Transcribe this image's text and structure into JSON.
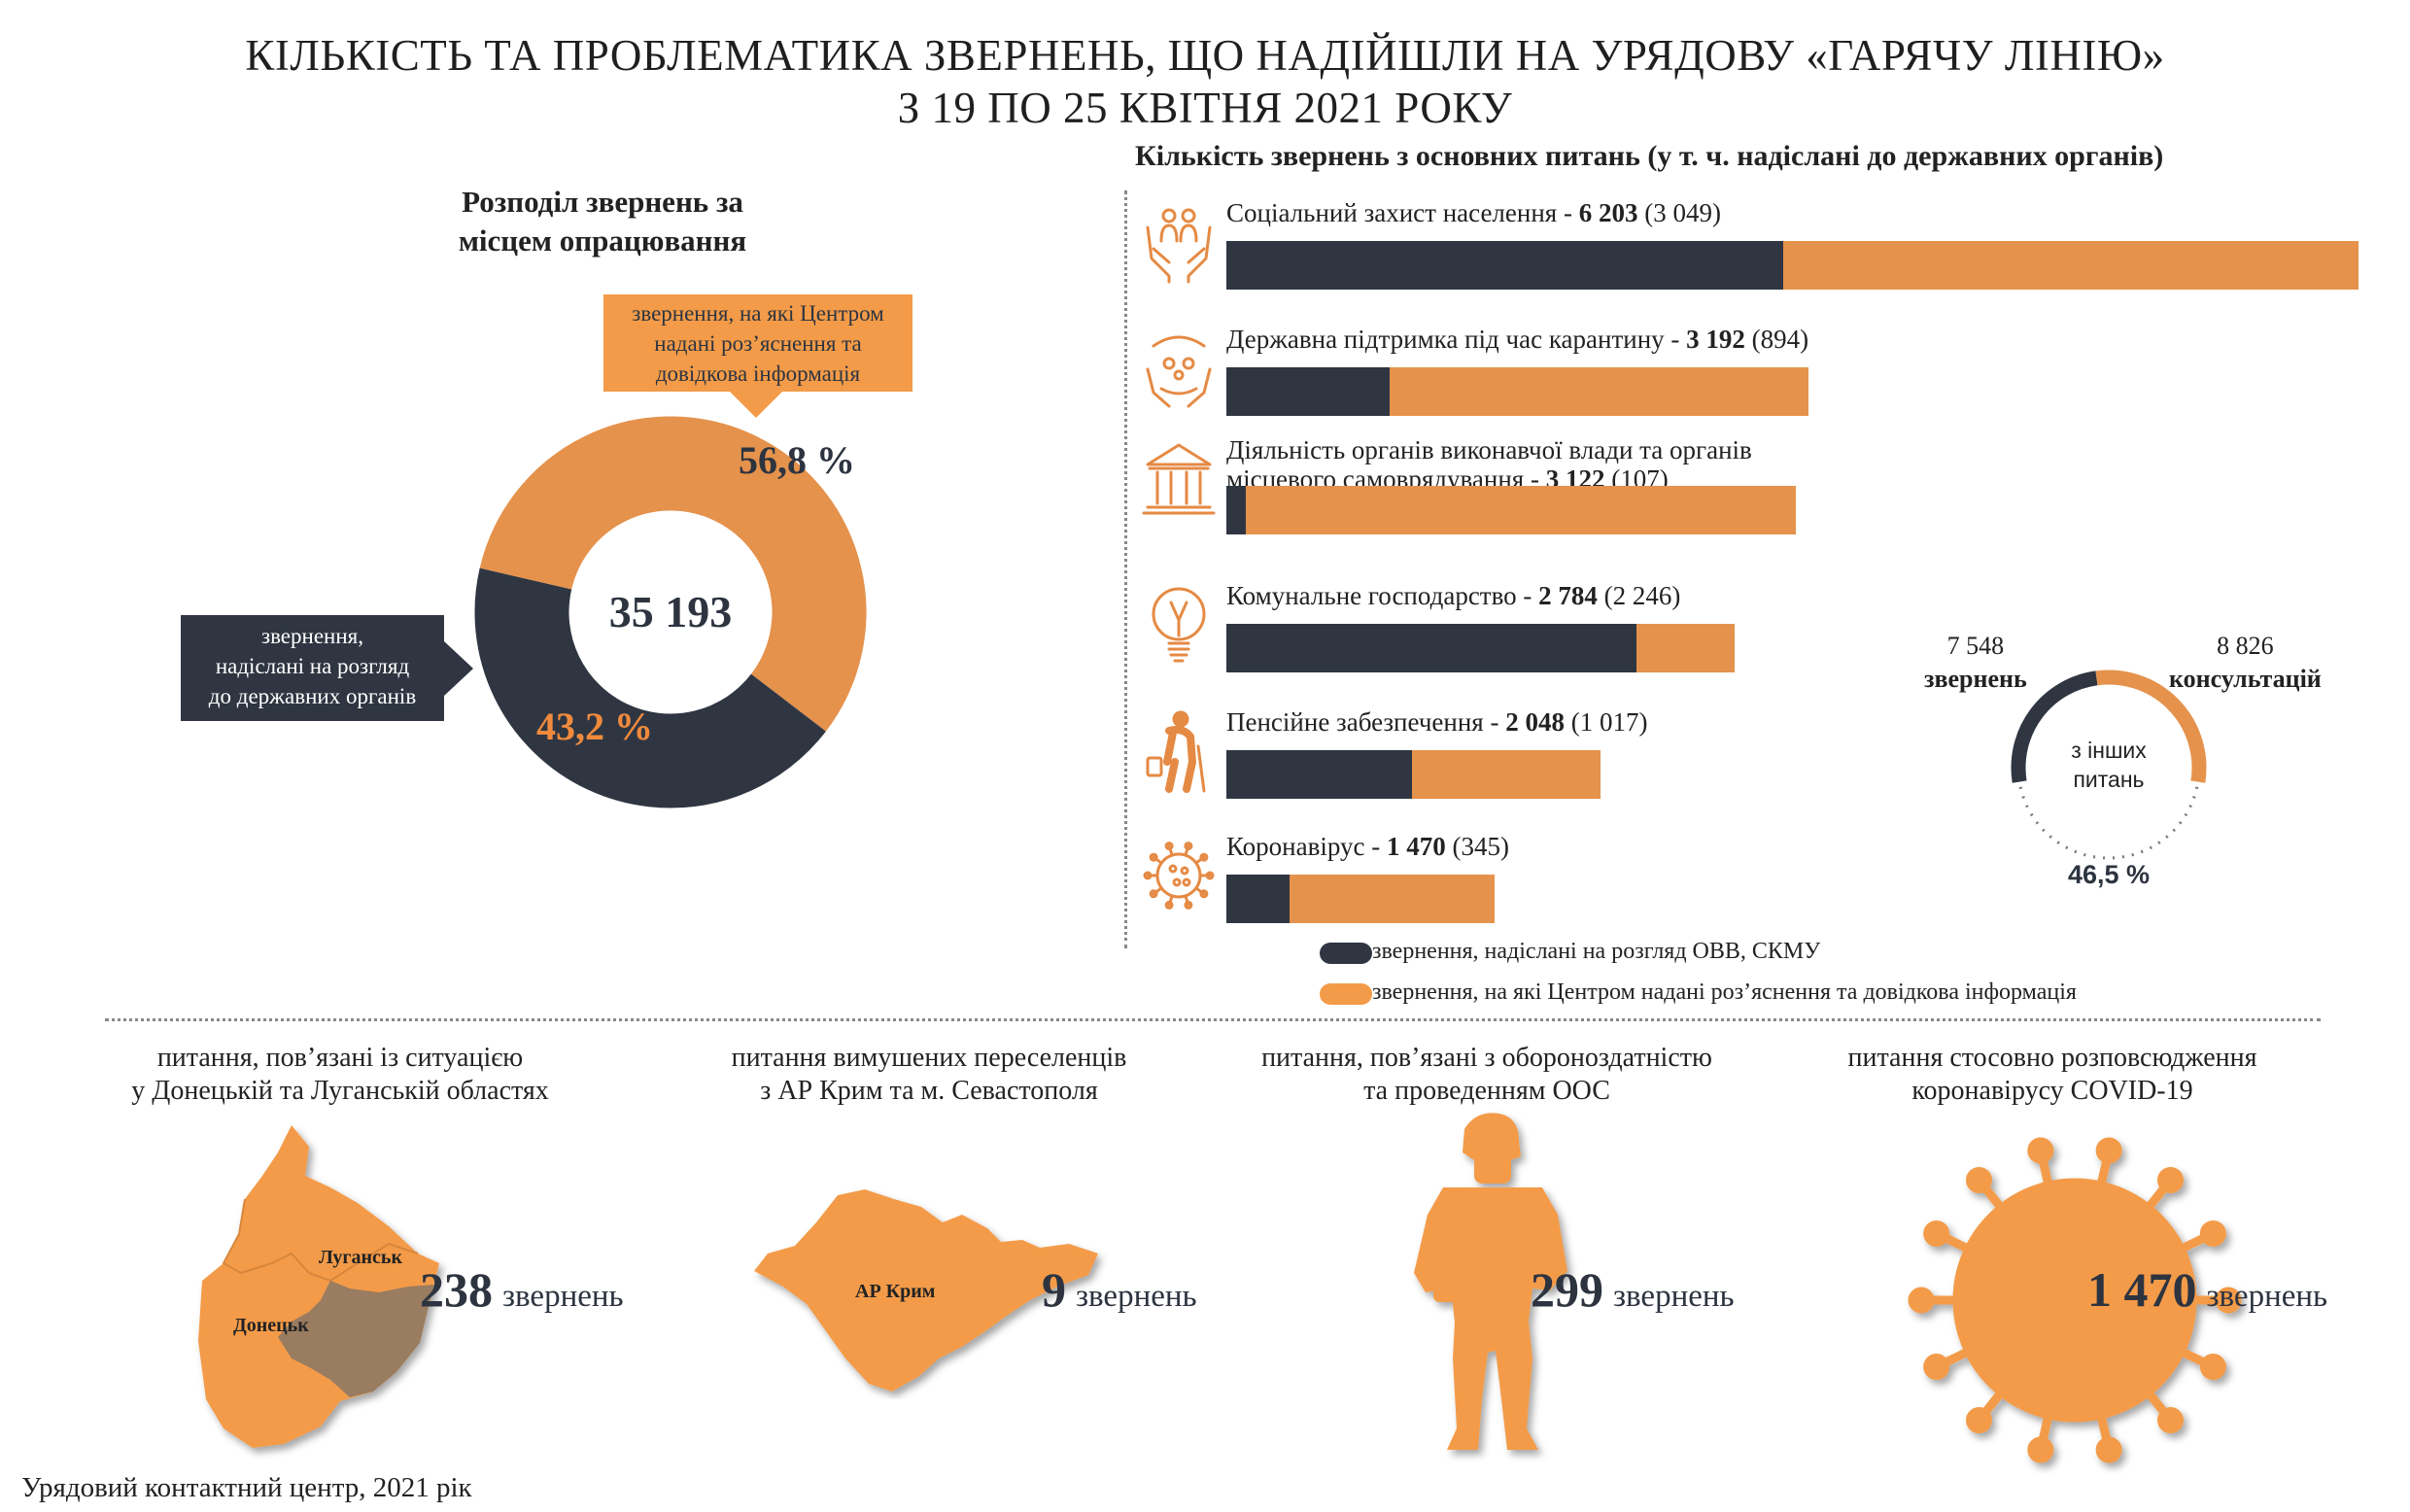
{
  "title": {
    "line1": "КІЛЬКІСТЬ ТА ПРОБЛЕМАТИКА ЗВЕРНЕНЬ, ЩО НАДІЙШЛИ НА УРЯДОВУ «ГАРЯЧУ ЛІНІЮ»",
    "line2": "З 19 ПО 25 КВІТНЯ 2021 РОКУ"
  },
  "donut": {
    "heading_line1": "Розподіл звернень за",
    "heading_line2": "місцем опрацювання",
    "total": "35 193",
    "orange_label_line1": "звернення, на які Центром",
    "orange_label_line2": "надані роз’яснення та",
    "orange_label_line3": "довідкова інформація",
    "orange_pct": "56,8 %",
    "dark_label_line1": "звернення,",
    "dark_label_line2": "надіслані на розгляд",
    "dark_label_line3": "до державних органів",
    "dark_pct": "43,2 %"
  },
  "bars": {
    "heading": "Кількість звернень з основних питань (у т. ч. надіслані до державних органів)",
    "legend_dark": "звернення, надіслані на розгляд ОВВ, СКМУ",
    "legend_orange": "звернення, на які Центром надані роз’яснення та довідкова інформація",
    "items": [
      {
        "label": "Соціальний захист населення - ",
        "label2": "",
        "total_text": "6 203",
        "sent_text": " (3 049)",
        "icon": "people-in-hands-icon"
      },
      {
        "label": "Державна підтримка під час карантину - ",
        "label2": "",
        "total_text": "3 192",
        "sent_text": " (894)",
        "icon": "hands-family-icon"
      },
      {
        "label": "Діяльність органів виконавчої влади та органів",
        "label2": "місцевого самоврядування - ",
        "total_text": "3 122",
        "sent_text": " (107)",
        "icon": "government-building-icon"
      },
      {
        "label": "Комунальне господарство - ",
        "label2": "",
        "total_text": "2 784",
        "sent_text": " (2 246)",
        "icon": "light-bulb-icon"
      },
      {
        "label": "Пенсійне забезпечення - ",
        "label2": "",
        "total_text": "2 048",
        "sent_text": " (1 017)",
        "icon": "elderly-person-icon"
      },
      {
        "label": "Коронавірус - ",
        "label2": "",
        "total_text": "1 470",
        "sent_text": " (345)",
        "icon": "virus-icon"
      }
    ]
  },
  "other": {
    "left_num": "7 548",
    "left_label": "звернень",
    "right_num": "8 826",
    "right_label": "консультацій",
    "center_line1": "з інших",
    "center_line2": "питань",
    "pct": "46,5 %"
  },
  "categories": [
    {
      "caption1": "питання, пов’язані із ситуацією",
      "caption2": "у Донецькій та Луганській областях",
      "num": "238",
      "unit": "звернень",
      "map_label1": "Луганськ",
      "map_label2": "Донецьк",
      "icon": "donbas-map-icon"
    },
    {
      "caption1": "питання вимушених переселенців",
      "caption2": "з АР Крим та м. Севастополя",
      "num": "9",
      "unit": "звернень",
      "map_label1": "АР Крим",
      "icon": "crimea-map-icon"
    },
    {
      "caption1": "питання, пов’язані з обороноздатністю",
      "caption2": "та проведенням ООС",
      "num": "299",
      "unit": "звернень",
      "icon": "soldier-icon"
    },
    {
      "caption1": "питання стосовно розповсюдження",
      "caption2": "коронавірусу COVID-19",
      "num": "1 470",
      "unit": "звернень",
      "icon": "coronavirus-icon"
    }
  ],
  "footer": "Урядовий контактний центр, 2021 рік",
  "colors": {
    "dark": "#2f3642",
    "orange": "#f39b48",
    "orange_soft": "#e5924c",
    "map_overlay": "#8a7566"
  },
  "chart_data": [
    {
      "type": "pie",
      "title": "Розподіл звернень за місцем опрацювання",
      "total": 35193,
      "categories": [
        "звернення, на які Центром надані роз’яснення та довідкова інформація",
        "звернення, надіслані на розгляд до державних органів"
      ],
      "values": [
        56.8,
        43.2
      ],
      "unit": "%"
    },
    {
      "type": "bar",
      "orientation": "horizontal",
      "stacked": true,
      "title": "Кількість звернень з основних питань (у т. ч. надіслані до державних органів)",
      "categories": [
        "Соціальний захист населення",
        "Державна підтримка під час карантину",
        "Діяльність органів виконавчої влади та органів місцевого самоврядування",
        "Комунальне господарство",
        "Пенсійне забезпечення",
        "Коронавірус"
      ],
      "totals": [
        6203,
        3192,
        3122,
        2784,
        2048,
        1470
      ],
      "series": [
        {
          "name": "звернення, надіслані на розгляд ОВВ, СКМУ",
          "values": [
            3049,
            894,
            107,
            2246,
            1017,
            345
          ]
        },
        {
          "name": "звернення, на які Центром надані роз’яснення та довідкова інформація",
          "values": [
            3154,
            2298,
            3015,
            538,
            1031,
            1125
          ]
        }
      ]
    },
    {
      "type": "pie",
      "title": "з інших питань",
      "categories": [
        "звернень",
        "консультацій"
      ],
      "values": [
        7548,
        8826
      ],
      "share_shown": 46.5
    }
  ]
}
